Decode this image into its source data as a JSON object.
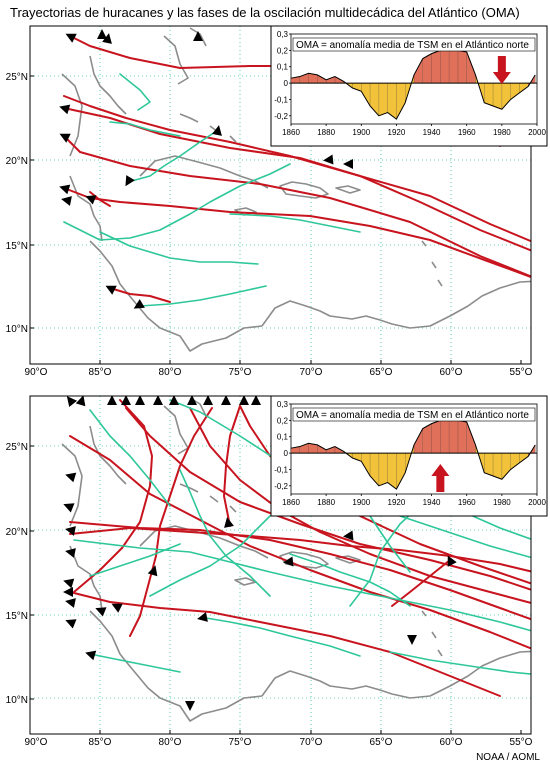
{
  "title": "Trayectorias de huracanes y las fases de la oscilación multidecádica del Atlántico (OMA)",
  "credit": "NOAA / AOML",
  "lat_labels": [
    "25°N",
    "20°N",
    "15°N",
    "10°N"
  ],
  "lon_labels": [
    "90°O",
    "85°O",
    "80°O",
    "75°O",
    "70°O",
    "65°O",
    "60°O",
    "55°O"
  ],
  "colors": {
    "track_red": "#c8141e",
    "track_green": "#2ec79a",
    "coast": "#8c8c8c",
    "grid": "#2ec79a",
    "arrow": "#000000",
    "positive": "#e0705a",
    "negative": "#f2c23a",
    "marker": "#c8141e"
  },
  "panels": [
    {
      "name": "top",
      "inset_title": "OMA = anomalía media de TSM en el Atlántico norte",
      "inset_x_labels": [
        "1860",
        "1880",
        "1900",
        "1920",
        "1940",
        "1960",
        "1980",
        "2000"
      ],
      "inset_y_labels": [
        "0,3",
        "0,2",
        "0,1",
        "0",
        "-0,1",
        "-0,2"
      ],
      "marker": {
        "year": 1980,
        "direction": "down"
      }
    },
    {
      "name": "bottom",
      "inset_title": "OMA = anomalía media de TSM en el Atlántico norte",
      "inset_x_labels": [
        "1860",
        "1880",
        "1900",
        "1920",
        "1940",
        "1960",
        "1980",
        "2000"
      ],
      "inset_y_labels": [
        "0,3",
        "0,2",
        "0,1",
        "0",
        "-0,1",
        "-0,2"
      ],
      "marker": {
        "year": 1945,
        "direction": "up"
      }
    }
  ],
  "chart_data": {
    "type": "area",
    "x": [
      1860,
      1865,
      1870,
      1875,
      1880,
      1885,
      1890,
      1895,
      1900,
      1905,
      1910,
      1915,
      1920,
      1925,
      1930,
      1935,
      1940,
      1945,
      1950,
      1955,
      1960,
      1965,
      1970,
      1975,
      1980,
      1985,
      1990,
      1995,
      1999
    ],
    "values": [
      0.03,
      0.04,
      0.06,
      0.05,
      0.02,
      0.04,
      0.01,
      -0.03,
      -0.05,
      -0.14,
      -0.2,
      -0.18,
      -0.22,
      -0.12,
      0.05,
      0.15,
      0.18,
      0.2,
      0.22,
      0.2,
      0.19,
      0.05,
      -0.12,
      -0.14,
      -0.16,
      -0.1,
      -0.06,
      -0.02,
      0.05
    ],
    "xlim": [
      1860,
      2000
    ],
    "ylim": [
      -0.25,
      0.3
    ]
  }
}
